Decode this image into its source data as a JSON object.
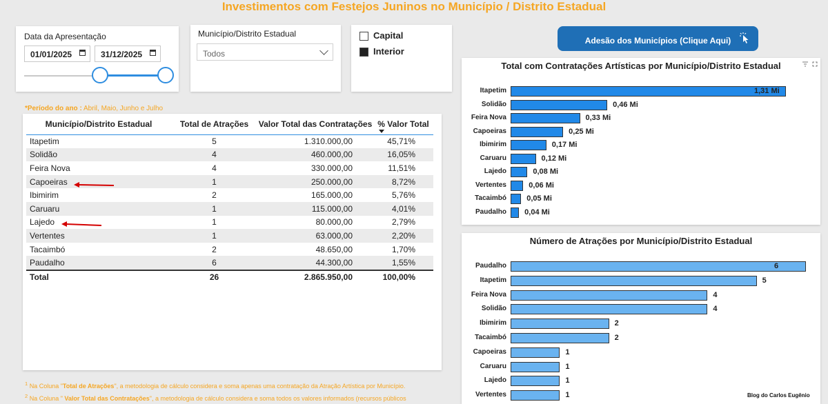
{
  "header": {
    "title": "Investimentos com Festejos Juninos no Município / Distrito Estadual"
  },
  "date_slicer": {
    "label": "Data da Apresentação",
    "start": "01/01/2025",
    "end": "31/12/2025"
  },
  "municipio_slicer": {
    "label": "Município/Distrito Estadual",
    "value": "Todos"
  },
  "type_filter": {
    "options": [
      {
        "label": "Capital",
        "checked": false
      },
      {
        "label": "Interior",
        "checked": true
      }
    ]
  },
  "adesao_button": {
    "label": "Adesão dos Municípios (Clique Aqui)"
  },
  "period_note": {
    "prefix": "*Período do ano :",
    "text": "Abril, Maio, Junho e Julho"
  },
  "table": {
    "columns": [
      "Município/Distrito Estadual",
      "Total de Atrações",
      "Valor Total das Contratações",
      "% Valor Total"
    ],
    "rows": [
      [
        "Itapetim",
        "5",
        "1.310.000,00",
        "45,71%"
      ],
      [
        "Solidão",
        "4",
        "460.000,00",
        "16,05%"
      ],
      [
        "Feira Nova",
        "4",
        "330.000,00",
        "11,51%"
      ],
      [
        "Capoeiras",
        "1",
        "250.000,00",
        "8,72%"
      ],
      [
        "Ibimirim",
        "2",
        "165.000,00",
        "5,76%"
      ],
      [
        "Caruaru",
        "1",
        "115.000,00",
        "4,01%"
      ],
      [
        "Lajedo",
        "1",
        "80.000,00",
        "2,79%"
      ],
      [
        "Vertentes",
        "1",
        "63.000,00",
        "2,20%"
      ],
      [
        "Tacaimbó",
        "2",
        "48.650,00",
        "1,70%"
      ],
      [
        "Paudalho",
        "6",
        "44.300,00",
        "1,55%"
      ]
    ],
    "total": [
      "Total",
      "26",
      "2.865.950,00",
      "100,00%"
    ]
  },
  "footnotes": [
    {
      "num": "1",
      "pre": "Na Coluna \"",
      "bold": "Total de Atrações",
      "post": "\", a metodologia de cálculo considera e soma apenas uma contratação da Atração Artística por Município."
    },
    {
      "num": "2",
      "pre": "Na Coluna \" ",
      "bold": "Valor Total das Contratações",
      "post": "\", a metodologia de cálculo considera e soma todos os valores informados (recursos públicos"
    }
  ],
  "brand": "Blog do Carlos Eugênio",
  "colors": {
    "accent_orange": "#f5a623",
    "bar_dark": "#2189e8",
    "bar_light": "#6ab3f0",
    "button": "#1f6fb6"
  },
  "chart_data": [
    {
      "type": "bar",
      "orientation": "horizontal",
      "title": "Total com Contratações Artísticas por Município/Distrito Estadual",
      "categories": [
        "Itapetim",
        "Solidão",
        "Feira Nova",
        "Capoeiras",
        "Ibimirim",
        "Caruaru",
        "Lajedo",
        "Vertentes",
        "Tacaimbó",
        "Paudalho"
      ],
      "values": [
        1.31,
        0.46,
        0.33,
        0.25,
        0.17,
        0.12,
        0.08,
        0.06,
        0.05,
        0.04
      ],
      "labels": [
        "1,31 Mi",
        "0,46 Mi",
        "0,33 Mi",
        "0,25 Mi",
        "0,17 Mi",
        "0,12 Mi",
        "0,08 Mi",
        "0,06 Mi",
        "0,05 Mi",
        "0,04 Mi"
      ],
      "xlim": [
        0,
        1.31
      ]
    },
    {
      "type": "bar",
      "orientation": "horizontal",
      "title": "Número de Atrações por Município/Distrito Estadual",
      "categories": [
        "Paudalho",
        "Itapetim",
        "Feira Nova",
        "Solidão",
        "Ibimirim",
        "Tacaimbó",
        "Capoeiras",
        "Caruaru",
        "Lajedo",
        "Vertentes"
      ],
      "values": [
        6,
        5,
        4,
        4,
        2,
        2,
        1,
        1,
        1,
        1
      ],
      "labels": [
        "6",
        "5",
        "4",
        "4",
        "2",
        "2",
        "1",
        "1",
        "1",
        "1"
      ],
      "xlim": [
        0,
        6
      ]
    }
  ]
}
